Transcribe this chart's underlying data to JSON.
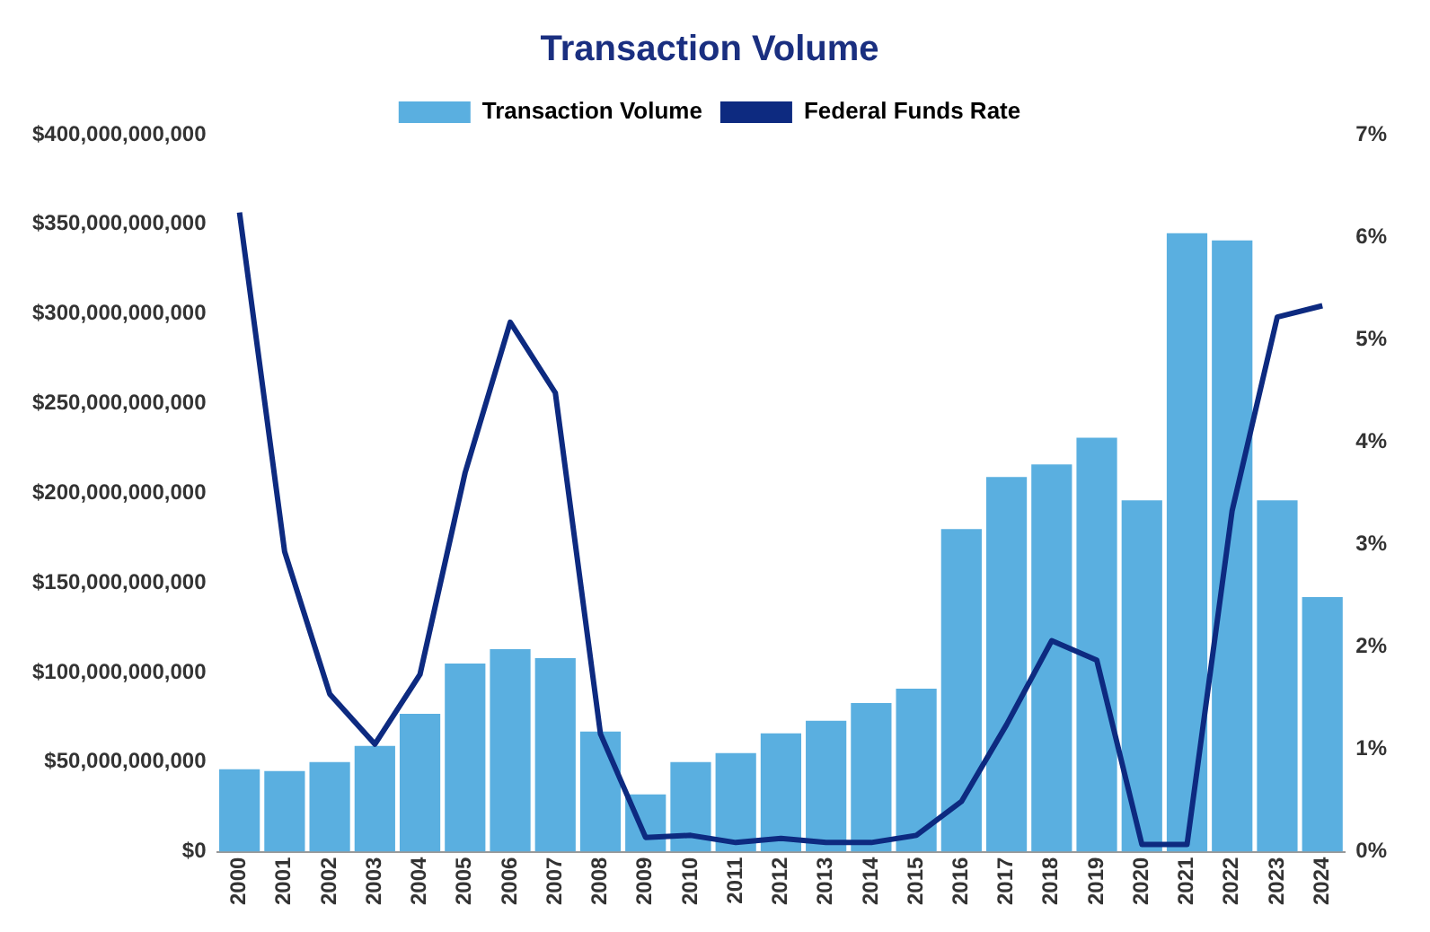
{
  "chart_data": {
    "type": "bar",
    "title": "Transaction Volume",
    "categories": [
      "2000",
      "2001",
      "2002",
      "2003",
      "2004",
      "2005",
      "2006",
      "2007",
      "2008",
      "2009",
      "2010",
      "2011",
      "2012",
      "2013",
      "2014",
      "2015",
      "2016",
      "2017",
      "2018",
      "2019",
      "2020",
      "2021",
      "2022",
      "2023",
      "2024"
    ],
    "series": [
      {
        "name": "Transaction Volume",
        "color": "#5aafe0",
        "values": [
          46000000000,
          45000000000,
          50000000000,
          59000000000,
          77000000000,
          105000000000,
          113000000000,
          108000000000,
          67000000000,
          32000000000,
          50000000000,
          55000000000,
          66000000000,
          73000000000,
          83000000000,
          91000000000,
          180000000000,
          209000000000,
          216000000000,
          231000000000,
          196000000000,
          345000000000,
          341000000000,
          196000000000,
          142000000000
        ]
      },
      {
        "name": "Federal Funds Rate",
        "type": "line",
        "axis": "y2",
        "color": "#0d2a80",
        "values": [
          6.24,
          2.93,
          1.54,
          1.05,
          1.73,
          3.7,
          5.17,
          4.48,
          1.15,
          0.14,
          0.16,
          0.09,
          0.13,
          0.09,
          0.09,
          0.16,
          0.49,
          1.24,
          2.06,
          1.87,
          0.07,
          0.07,
          3.33,
          5.22,
          5.33
        ]
      }
    ],
    "ylim": [
      0,
      400000000000
    ],
    "yticks": [
      {
        "value": 0,
        "label": "$0"
      },
      {
        "value": 50000000000,
        "label": "$50,000,000,000"
      },
      {
        "value": 100000000000,
        "label": "$100,000,000,000"
      },
      {
        "value": 150000000000,
        "label": "$150,000,000,000"
      },
      {
        "value": 200000000000,
        "label": "$200,000,000,000"
      },
      {
        "value": 250000000000,
        "label": "$250,000,000,000"
      },
      {
        "value": 300000000000,
        "label": "$300,000,000,000"
      },
      {
        "value": 350000000000,
        "label": "$350,000,000,000"
      },
      {
        "value": 400000000000,
        "label": "$400,000,000,000"
      }
    ],
    "y2lim": [
      0,
      7
    ],
    "y2ticks": [
      {
        "value": 0,
        "label": "0%"
      },
      {
        "value": 1,
        "label": "1%"
      },
      {
        "value": 2,
        "label": "2%"
      },
      {
        "value": 3,
        "label": "3%"
      },
      {
        "value": 4,
        "label": "4%"
      },
      {
        "value": 5,
        "label": "5%"
      },
      {
        "value": 6,
        "label": "6%"
      },
      {
        "value": 7,
        "label": "7%"
      }
    ],
    "legend": "top",
    "grid": false,
    "marker": "none",
    "line_style": "solid"
  }
}
